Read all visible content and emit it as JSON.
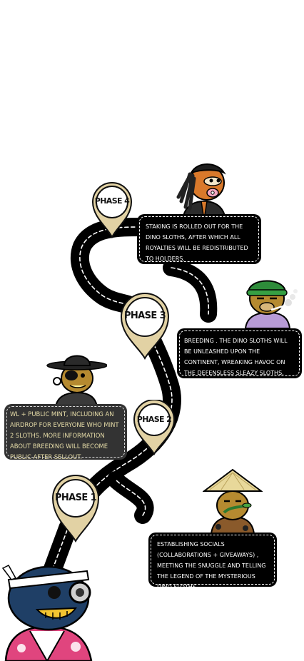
{
  "roadmap": {
    "phases": [
      {
        "label": "PHASE 4",
        "text": "STAKING IS ROLLED OUT FOR THE DINO SLOTHS, AFTER WHICH ALL ROYALTIES WILL BE REDISTRIBUTED TO HOLDERS."
      },
      {
        "label": "PHASE 3",
        "text": "BREEDING . THE DINO SLOTHS WILL BE UNLEASHED UPON THE CONTINENT, WREAKING HAVOC ON THE DEFENSLESS SLEAZY SLOTHS."
      },
      {
        "label": "PHASE 2",
        "text": "WL + PUBLIC MINT, INCLUDING AN AIRDROP FOR EVERYONE WHO MINT 2 SLOTHS. MORE INFORMATION ABOUT BREEDING WILL BECOME PUBLIC AFTER SELLOUT."
      },
      {
        "label": "PHASE 1",
        "text": "ESTABLISHING SOCIALS (COLLABORATIONS + GIVEAWAYS) , MEETING THE SNUGGLE AND TELLING THE LEGEND OF THE MYSTERIOUS DINO SLOTHS ."
      }
    ]
  },
  "colors": {
    "road": "#000000",
    "road_dash": "#ffffff",
    "pin_body": "#e2d2a4",
    "pin_outline": "#111111",
    "box_dark": "#000000",
    "box_grey": "#333333",
    "box_grey_text": "#e6dca8",
    "sloth_fur": "#d9792b",
    "sloth_mustard": "#b58a30",
    "sloth_blue": "#1f3f66",
    "kimono_pink": "#e0457e"
  },
  "icons": [
    "map-pin-icon",
    "sloth-dreadlocks-character",
    "sloth-green-beanie-character",
    "sloth-cowboy-hat-character",
    "sloth-straw-hat-character",
    "sloth-headband-character"
  ]
}
